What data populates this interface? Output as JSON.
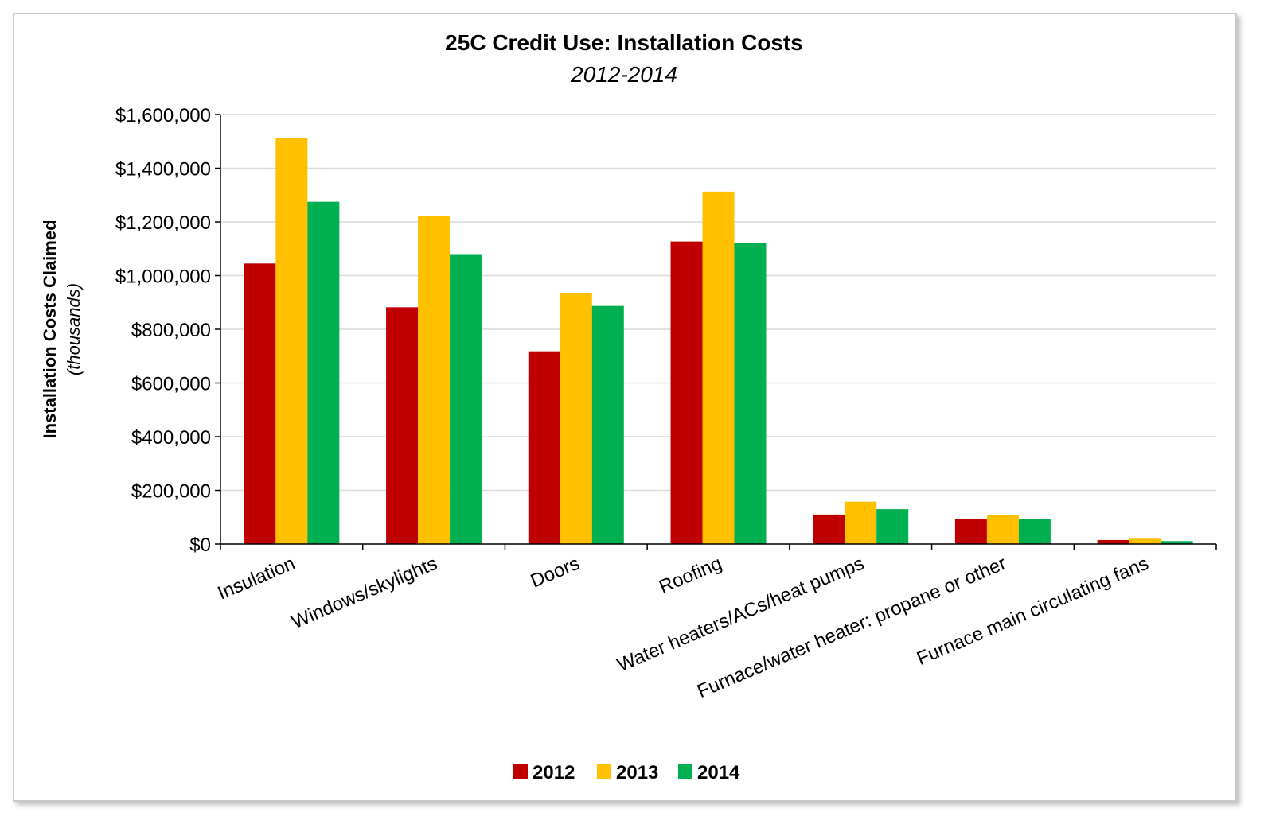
{
  "chart_data": {
    "type": "bar",
    "title": "25C Credit Use: Installation Costs",
    "subtitle": "2012-2014",
    "ylabel": "Installation Costs Claimed",
    "ylabel_sub": "(thousands)",
    "xlabel": "",
    "ylim": [
      0,
      1600000
    ],
    "yticks": [
      0,
      200000,
      400000,
      600000,
      800000,
      1000000,
      1200000,
      1400000,
      1600000
    ],
    "ytick_labels": [
      "$0",
      "$200,000",
      "$400,000",
      "$600,000",
      "$800,000",
      "$1,000,000",
      "$1,200,000",
      "$1,400,000",
      "$1,600,000"
    ],
    "grid": true,
    "legend_position": "bottom-center",
    "categories": [
      "Insulation",
      "Windows/skylights",
      "Doors",
      "Roofing",
      "Water heaters/ACs/heat pumps",
      "Furnace/water heater: propane or other",
      "Furnace main circulating fans"
    ],
    "series": [
      {
        "name": "2012",
        "color": "#C00000",
        "values": [
          1045000,
          882000,
          718000,
          1127000,
          110000,
          94000,
          15000
        ]
      },
      {
        "name": "2013",
        "color": "#FFC000",
        "values": [
          1512000,
          1221000,
          935000,
          1313000,
          158000,
          107000,
          20000
        ]
      },
      {
        "name": "2014",
        "color": "#00B050",
        "values": [
          1275000,
          1080000,
          887000,
          1120000,
          130000,
          93000,
          11000
        ]
      }
    ]
  }
}
